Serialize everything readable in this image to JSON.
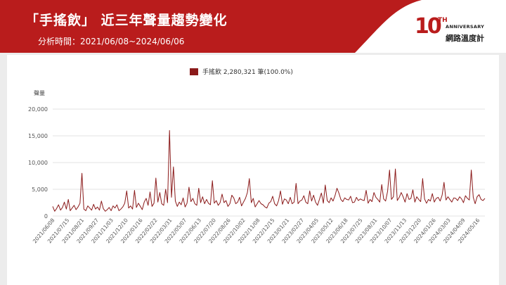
{
  "header": {
    "title": "「手搖飲」 近三年聲量趨勢變化",
    "subtitle": "分析時間：2021/06/08~2024/06/06",
    "logo_anniversary": "ANNIVERSARY",
    "logo_name": "網路溫度計",
    "logo_number": "10",
    "logo_suffix": "TH"
  },
  "colors": {
    "brand": "#b91c1c",
    "series": "#8b1a1a"
  },
  "legend": {
    "label": "手搖飲 2,280,321 筆(100.0%)"
  },
  "chart_data": {
    "type": "line",
    "title": "",
    "ylabel": "聲量",
    "xlabel": "",
    "ylim": [
      0,
      20000
    ],
    "yticks": [
      "0",
      "5,000",
      "10,000",
      "15,000",
      "20,000"
    ],
    "grid": true,
    "legend_position": "top-center",
    "x_start": "2021-06-08",
    "x_end": "2024-06-06",
    "xtick_labels": [
      "2021/06/08",
      "2021/07/15",
      "2021/08/21",
      "2021/09/27",
      "2021/11/03",
      "2021/12/10",
      "2022/01/16",
      "2022/02/22",
      "2022/03/31",
      "2022/05/07",
      "2022/06/13",
      "2022/07/20",
      "2022/08/26",
      "2022/10/02",
      "2022/11/08",
      "2022/12/15",
      "2023/01/21",
      "2023/02/27",
      "2023/04/05",
      "2023/05/12",
      "2023/06/18",
      "2023/07/25",
      "2023/08/31",
      "2023/10/07",
      "2023/11/13",
      "2023/12/20",
      "2024/01/26",
      "2024/03/03",
      "2024/04/09",
      "2024/05/16"
    ],
    "series": [
      {
        "name": "手搖飲",
        "values": [
          1800,
          900,
          1400,
          2100,
          1100,
          1600,
          2600,
          1300,
          3100,
          1000,
          1500,
          2000,
          1200,
          1700,
          2400,
          8000,
          1300,
          1000,
          1900,
          1500,
          1100,
          2200,
          1300,
          1700,
          1100,
          2800,
          1400,
          900,
          1200,
          1600,
          1000,
          1900,
          1500,
          2100,
          1000,
          1300,
          1700,
          2400,
          4700,
          1500,
          1900,
          1300,
          4800,
          1600,
          2400,
          1800,
          1200,
          2600,
          3300,
          2000,
          4500,
          1800,
          2400,
          7100,
          2600,
          4400,
          2300,
          2000,
          5000,
          2500,
          16000,
          3500,
          9200,
          2800,
          1800,
          2600,
          2100,
          3400,
          1700,
          2400,
          5400,
          2700,
          3300,
          2300,
          2000,
          5200,
          2500,
          3600,
          2300,
          3100,
          2400,
          2100,
          6600,
          2400,
          2900,
          2000,
          2500,
          4100,
          2500,
          2900,
          1800,
          2300,
          3900,
          3400,
          2300,
          2600,
          3500,
          1900,
          2600,
          3300,
          4400,
          7000,
          2500,
          3300,
          1700,
          2300,
          2900,
          2300,
          2100,
          1700,
          1500,
          2400,
          2700,
          3700,
          2300,
          1900,
          2900,
          4700,
          2200,
          3200,
          3000,
          2300,
          3500,
          2300,
          2600,
          6100,
          2300,
          2800,
          3000,
          3800,
          2600,
          2300,
          4700,
          2800,
          3900,
          2600,
          2000,
          3100,
          4300,
          2400,
          5800,
          2900,
          2500,
          3400,
          2800,
          3800,
          5200,
          4300,
          3100,
          2700,
          3400,
          3100,
          3000,
          3700,
          2500,
          2600,
          3500,
          2900,
          3200,
          3000,
          2900,
          4800,
          2400,
          3100,
          2700,
          4400,
          3500,
          3100,
          2600,
          5900,
          3200,
          2800,
          4600,
          8600,
          3100,
          3600,
          8800,
          2900,
          3500,
          4400,
          3600,
          2600,
          4200,
          3100,
          3300,
          4900,
          2600,
          3600,
          3100,
          2700,
          7000,
          3200,
          2400,
          3100,
          2800,
          4200,
          2600,
          3300,
          3500,
          2800,
          3900,
          6300,
          3000,
          3600,
          3100,
          2600,
          3400,
          3300,
          2900,
          3600,
          3200,
          2500,
          3800,
          3300,
          3000,
          8600,
          3500,
          2300,
          3600,
          4000,
          3100,
          2900,
          3300
        ]
      }
    ]
  }
}
